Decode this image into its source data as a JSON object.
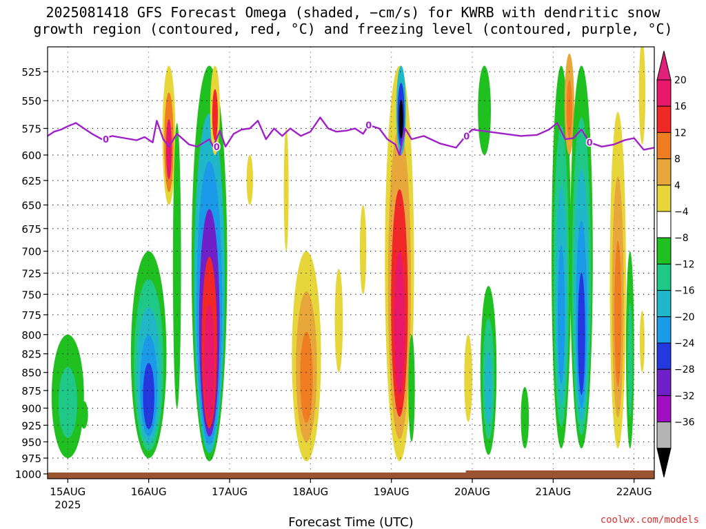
{
  "chart_data": {
    "type": "heatmap",
    "title_lines": [
      "2025081418 GFS Forecast Omega (shaded, −cm/s) for KWRB with dendritic snow",
      "growth region (contoured, red, °C) and freezing level (contoured, purple, °C)"
    ],
    "xlabel": "Forecast Time (UTC)",
    "credit": "coolwx.com/models",
    "x_ticks": [
      {
        "day": 15,
        "label": "15AUG",
        "sublabel": "2025"
      },
      {
        "day": 16,
        "label": "16AUG",
        "sublabel": ""
      },
      {
        "day": 17,
        "label": "17AUG",
        "sublabel": ""
      },
      {
        "day": 18,
        "label": "18AUG",
        "sublabel": ""
      },
      {
        "day": 19,
        "label": "19AUG",
        "sublabel": ""
      },
      {
        "day": 20,
        "label": "20AUG",
        "sublabel": ""
      },
      {
        "day": 21,
        "label": "21AUG",
        "sublabel": ""
      },
      {
        "day": 22,
        "label": "22AUG",
        "sublabel": ""
      }
    ],
    "x_range_days": [
      14.75,
      22.25
    ],
    "y_ticks": [
      525,
      550,
      575,
      600,
      625,
      650,
      675,
      700,
      725,
      750,
      775,
      800,
      825,
      850,
      875,
      900,
      925,
      950,
      975,
      1000
    ],
    "y_scale": "log-pressure",
    "y_range_hPa": [
      500,
      1005
    ],
    "grid": "dotted",
    "colorbar": {
      "labels": [
        "20",
        "16",
        "12",
        "8",
        "4",
        "−4",
        "−8",
        "−12",
        "−16",
        "−20",
        "−24",
        "−28",
        "−32",
        "−36"
      ],
      "colors": [
        "#e8186a",
        "#f02828",
        "#ef7d22",
        "#e8a73a",
        "#e6d63a",
        "#ffffff",
        "#20c020",
        "#20c888",
        "#20b8c8",
        "#1a9ae8",
        "#2438e0",
        "#7020c8",
        "#a010c0",
        "#b4b4b4"
      ],
      "top_color": "#e0207a",
      "bottom_color": "#000000"
    },
    "freezing_level": {
      "label": "0",
      "color": "#a020c8",
      "points": [
        [
          14.75,
          582
        ],
        [
          14.83,
          578
        ],
        [
          14.92,
          576
        ],
        [
          15.0,
          573
        ],
        [
          15.1,
          570
        ],
        [
          15.2,
          575
        ],
        [
          15.3,
          580
        ],
        [
          15.42,
          585
        ],
        [
          15.55,
          582
        ],
        [
          15.7,
          584
        ],
        [
          15.85,
          586
        ],
        [
          15.95,
          583
        ],
        [
          16.05,
          588
        ],
        [
          16.1,
          568
        ],
        [
          16.18,
          585
        ],
        [
          16.25,
          592
        ],
        [
          16.35,
          580
        ],
        [
          16.5,
          590
        ],
        [
          16.6,
          592
        ],
        [
          16.75,
          585
        ],
        [
          16.8,
          592
        ],
        [
          16.88,
          577
        ],
        [
          16.95,
          592
        ],
        [
          17.05,
          580
        ],
        [
          17.15,
          576
        ],
        [
          17.25,
          575
        ],
        [
          17.35,
          568
        ],
        [
          17.45,
          585
        ],
        [
          17.55,
          575
        ],
        [
          17.65,
          582
        ],
        [
          17.75,
          575
        ],
        [
          17.88,
          582
        ],
        [
          18.0,
          578
        ],
        [
          18.12,
          565
        ],
        [
          18.22,
          575
        ],
        [
          18.32,
          578
        ],
        [
          18.45,
          577
        ],
        [
          18.55,
          575
        ],
        [
          18.65,
          580
        ],
        [
          18.72,
          572
        ],
        [
          18.85,
          575
        ],
        [
          18.95,
          585
        ],
        [
          19.05,
          590
        ],
        [
          19.1,
          600
        ],
        [
          19.17,
          575
        ],
        [
          19.25,
          585
        ],
        [
          19.4,
          582
        ],
        [
          19.6,
          589
        ],
        [
          19.8,
          593
        ],
        [
          19.92,
          582
        ],
        [
          20.0,
          576
        ],
        [
          20.2,
          578
        ],
        [
          20.4,
          580
        ],
        [
          20.6,
          582
        ],
        [
          20.8,
          581
        ],
        [
          20.95,
          576
        ],
        [
          21.05,
          570
        ],
        [
          21.15,
          585
        ],
        [
          21.25,
          584
        ],
        [
          21.35,
          576
        ],
        [
          21.45,
          588
        ],
        [
          21.6,
          592
        ],
        [
          21.75,
          590
        ],
        [
          21.88,
          586
        ],
        [
          22.0,
          584
        ],
        [
          22.12,
          595
        ],
        [
          22.25,
          593
        ]
      ]
    },
    "terrain_color": "#9a5530",
    "omega_regions": [
      {
        "day": 15.0,
        "top": 800,
        "bottom": 975,
        "wd": 0.2,
        "levels": [
          "#20c020",
          "#20c888"
        ]
      },
      {
        "day": 15.2,
        "top": 890,
        "bottom": 930,
        "wd": 0.05,
        "levels": [
          "#20c020"
        ]
      },
      {
        "day": 16.0,
        "top": 700,
        "bottom": 975,
        "wd": 0.22,
        "levels": [
          "#20c020",
          "#20c888",
          "#20b8c8",
          "#1a9ae8",
          "#2438e0"
        ]
      },
      {
        "day": 16.25,
        "top": 520,
        "bottom": 650,
        "wd": 0.08,
        "levels": [
          "#e6d63a",
          "#ef7d22",
          "#e8186a"
        ]
      },
      {
        "day": 16.35,
        "top": 570,
        "bottom": 900,
        "wd": 0.05,
        "levels": [
          "#20c020"
        ]
      },
      {
        "day": 16.75,
        "top": 520,
        "bottom": 980,
        "wd": 0.22,
        "levels": [
          "#20c020",
          "#20b8c8",
          "#1a9ae8",
          "#7020c8",
          "#f02828",
          "#e8186a"
        ]
      },
      {
        "day": 16.82,
        "top": 520,
        "bottom": 600,
        "wd": 0.06,
        "levels": [
          "#e6d63a",
          "#f02828"
        ]
      },
      {
        "day": 17.25,
        "top": 600,
        "bottom": 650,
        "wd": 0.04,
        "levels": [
          "#e6d63a"
        ]
      },
      {
        "day": 17.7,
        "top": 575,
        "bottom": 700,
        "wd": 0.03,
        "levels": [
          "#e6d63a"
        ]
      },
      {
        "day": 17.95,
        "top": 700,
        "bottom": 980,
        "wd": 0.18,
        "levels": [
          "#e6d63a",
          "#e8a73a",
          "#ef7d22"
        ]
      },
      {
        "day": 18.35,
        "top": 720,
        "bottom": 850,
        "wd": 0.05,
        "levels": [
          "#e6d63a"
        ]
      },
      {
        "day": 18.65,
        "top": 650,
        "bottom": 750,
        "wd": 0.04,
        "levels": [
          "#e6d63a"
        ]
      },
      {
        "day": 19.1,
        "top": 520,
        "bottom": 980,
        "wd": 0.18,
        "levels": [
          "#e6d63a",
          "#e8a73a",
          "#f02828",
          "#e8186a"
        ]
      },
      {
        "day": 19.12,
        "top": 520,
        "bottom": 600,
        "wd": 0.06,
        "levels": [
          "#20b8c8",
          "#2438e0",
          "#000000"
        ]
      },
      {
        "day": 19.25,
        "top": 800,
        "bottom": 950,
        "wd": 0.04,
        "levels": [
          "#20c020"
        ]
      },
      {
        "day": 19.95,
        "top": 800,
        "bottom": 920,
        "wd": 0.05,
        "levels": [
          "#e6d63a"
        ]
      },
      {
        "day": 20.15,
        "top": 520,
        "bottom": 600,
        "wd": 0.08,
        "levels": [
          "#20c020"
        ]
      },
      {
        "day": 20.2,
        "top": 740,
        "bottom": 970,
        "wd": 0.1,
        "levels": [
          "#20c020",
          "#20c888",
          "#20b8c8"
        ]
      },
      {
        "day": 20.65,
        "top": 870,
        "bottom": 960,
        "wd": 0.05,
        "levels": [
          "#20c020"
        ]
      },
      {
        "day": 21.1,
        "top": 520,
        "bottom": 960,
        "wd": 0.12,
        "levels": [
          "#20c020",
          "#20c888",
          "#20b8c8",
          "#1a9ae8"
        ]
      },
      {
        "day": 21.2,
        "top": 510,
        "bottom": 600,
        "wd": 0.06,
        "levels": [
          "#e8a73a",
          "#ef7d22"
        ]
      },
      {
        "day": 21.35,
        "top": 520,
        "bottom": 960,
        "wd": 0.14,
        "levels": [
          "#20c020",
          "#20c888",
          "#20b8c8",
          "#1a9ae8",
          "#2438e0"
        ]
      },
      {
        "day": 21.8,
        "top": 560,
        "bottom": 960,
        "wd": 0.1,
        "levels": [
          "#e6d63a",
          "#e8a73a",
          "#ef7d22"
        ]
      },
      {
        "day": 21.95,
        "top": 700,
        "bottom": 960,
        "wd": 0.05,
        "levels": [
          "#20c020",
          "#20c888"
        ]
      },
      {
        "day": 22.1,
        "top": 500,
        "bottom": 590,
        "wd": 0.04,
        "levels": [
          "#e6d63a"
        ]
      },
      {
        "day": 22.1,
        "top": 770,
        "bottom": 850,
        "wd": 0.03,
        "levels": [
          "#e6d63a"
        ]
      }
    ]
  }
}
